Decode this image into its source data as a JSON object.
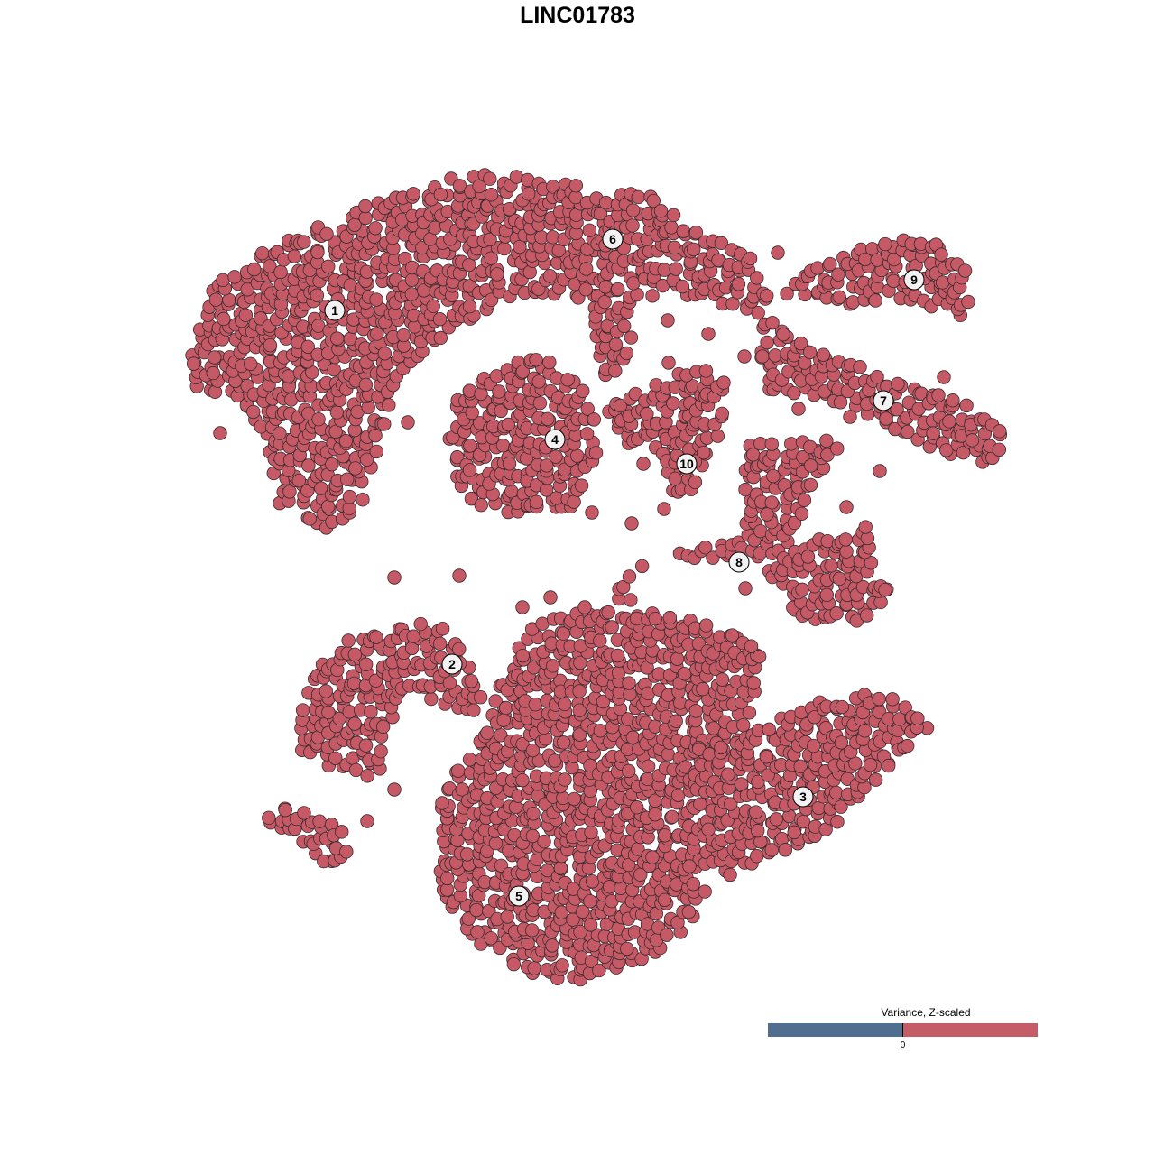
{
  "chart_data": {
    "type": "scatter",
    "title": "LINC01783",
    "xlabel": "",
    "ylabel": "",
    "grid": false,
    "axes_visible": false,
    "point_color": "#c55a66",
    "point_edge_color": "#3b2b2e",
    "clusters": [
      {
        "label": "1",
        "label_pos": [
          37.1,
          93.6
        ],
        "hull": [
          [
            21,
            88
          ],
          [
            23,
            96
          ],
          [
            30,
            101
          ],
          [
            40,
            105
          ],
          [
            52,
            109
          ],
          [
            56,
            109
          ],
          [
            56,
            95
          ],
          [
            48,
            90
          ],
          [
            44,
            86
          ],
          [
            42,
            78
          ],
          [
            40,
            72
          ],
          [
            36,
            69
          ],
          [
            31,
            72
          ],
          [
            29,
            80
          ],
          [
            25,
            84
          ],
          [
            21.5,
            85
          ]
        ]
      },
      {
        "label": "6",
        "label_pos": [
          67.9,
          101.5
        ],
        "hull": [
          [
            56,
            109
          ],
          [
            64,
            107.5
          ],
          [
            72,
            106.5
          ],
          [
            78,
            102
          ],
          [
            83,
            100
          ],
          [
            86,
            93
          ],
          [
            82,
            93
          ],
          [
            74,
            96
          ],
          [
            70,
            94
          ],
          [
            70,
            87
          ],
          [
            67,
            86
          ],
          [
            65,
            95
          ],
          [
            56,
            95
          ]
        ]
      },
      {
        "label": "9",
        "label_pos": [
          101.3,
          97
        ],
        "hull": [
          [
            87,
            95.5
          ],
          [
            91,
            99.5
          ],
          [
            96,
            100.5
          ],
          [
            100,
            102
          ],
          [
            104,
            101
          ],
          [
            107,
            98
          ],
          [
            107.5,
            93
          ],
          [
            105,
            93
          ],
          [
            102,
            94
          ],
          [
            99,
            95
          ],
          [
            94,
            94
          ],
          [
            88,
            95
          ]
        ]
      },
      {
        "label": "7",
        "label_pos": [
          97.9,
          83.6
        ],
        "hull": [
          [
            84,
            93
          ],
          [
            90,
            90.5
          ],
          [
            96,
            87
          ],
          [
            102,
            85
          ],
          [
            108,
            83
          ],
          [
            112,
            79
          ],
          [
            110,
            76.5
          ],
          [
            104,
            78
          ],
          [
            99,
            80
          ],
          [
            94,
            83
          ],
          [
            88,
            84
          ],
          [
            84,
            85
          ]
        ]
      },
      {
        "label": "4",
        "label_pos": [
          61.5,
          79.3
        ],
        "hull": [
          [
            50,
            83
          ],
          [
            54,
            87
          ],
          [
            60,
            88.5
          ],
          [
            65,
            85
          ],
          [
            66.5,
            79
          ],
          [
            64,
            72
          ],
          [
            58,
            70.5
          ],
          [
            52,
            72
          ],
          [
            49.5,
            78
          ]
        ]
      },
      {
        "label": "10",
        "label_pos": [
          76.1,
          76.6
        ],
        "hull": [
          [
            67,
            83
          ],
          [
            72,
            85.5
          ],
          [
            78,
            87.5
          ],
          [
            81,
            86
          ],
          [
            80,
            81
          ],
          [
            78,
            75
          ],
          [
            75,
            72
          ],
          [
            73,
            78
          ],
          [
            69,
            79
          ]
        ]
      },
      {
        "label": "8",
        "label_pos": [
          81.9,
          65.7
        ],
        "hull": [
          [
            82,
            79
          ],
          [
            92,
            79.5
          ],
          [
            94,
            78
          ],
          [
            90,
            74
          ],
          [
            88,
            68
          ],
          [
            97,
            70
          ],
          [
            97,
            65
          ],
          [
            99,
            62
          ],
          [
            96,
            59
          ],
          [
            89,
            59
          ],
          [
            86,
            63
          ],
          [
            84,
            66
          ],
          [
            78,
            66
          ],
          [
            72,
            66
          ],
          [
            70,
            64
          ],
          [
            70,
            59
          ],
          [
            68,
            62
          ],
          [
            69,
            65
          ],
          [
            76,
            67
          ],
          [
            82,
            68
          ],
          [
            83,
            72
          ],
          [
            82,
            76
          ]
        ]
      },
      {
        "label": "2",
        "label_pos": [
          50.1,
          54.4
        ],
        "hull": [
          [
            33,
            48
          ],
          [
            35,
            54
          ],
          [
            39,
            57.5
          ],
          [
            47,
            59
          ],
          [
            50,
            59
          ],
          [
            51,
            56
          ],
          [
            53,
            52
          ],
          [
            54,
            49
          ],
          [
            50,
            49
          ],
          [
            47,
            51
          ],
          [
            44,
            51
          ],
          [
            43,
            46
          ],
          [
            42,
            42
          ],
          [
            38,
            42
          ],
          [
            33,
            45
          ],
          [
            32.5,
            48
          ]
        ]
      },
      {
        "label": "",
        "label_pos": null,
        "hull": [
          [
            29,
            37
          ],
          [
            32,
            39
          ],
          [
            38,
            36
          ],
          [
            39,
            33
          ],
          [
            36,
            31
          ],
          [
            34,
            34.5
          ],
          [
            30,
            36.5
          ]
        ]
      },
      {
        "label": "5",
        "label_pos": [
          57.5,
          28.7
        ],
        "hull": [
          [
            55,
            52
          ],
          [
            58,
            58
          ],
          [
            62,
            60
          ],
          [
            70,
            61
          ],
          [
            78,
            59
          ],
          [
            85,
            56
          ],
          [
            84,
            50
          ],
          [
            82,
            45
          ],
          [
            79,
            43
          ],
          [
            77,
            40
          ],
          [
            78,
            33
          ],
          [
            79,
            30
          ],
          [
            76,
            25
          ],
          [
            72,
            21
          ],
          [
            64,
            19
          ],
          [
            58,
            20
          ],
          [
            52,
            24
          ],
          [
            49,
            29
          ],
          [
            48,
            35
          ],
          [
            49,
            40
          ],
          [
            52,
            45
          ],
          [
            54.5,
            48
          ]
        ]
      },
      {
        "label": "3",
        "label_pos": [
          89,
          39.7
        ],
        "hull": [
          [
            77,
            45
          ],
          [
            83,
            47
          ],
          [
            88,
            49
          ],
          [
            92,
            51
          ],
          [
            98,
            51
          ],
          [
            102,
            49
          ],
          [
            103,
            47
          ],
          [
            99,
            43
          ],
          [
            94,
            38
          ],
          [
            90,
            34
          ],
          [
            85,
            33
          ],
          [
            80,
            30
          ],
          [
            78,
            34
          ],
          [
            77,
            40
          ]
        ]
      }
    ],
    "stray_points": [
      [
        43.7,
        64
      ],
      [
        50.9,
        64.2
      ],
      [
        57.9,
        60.7
      ],
      [
        61,
        61.8
      ],
      [
        64.8,
        60.7
      ],
      [
        45.2,
        81.2
      ],
      [
        71.3,
        76.6
      ],
      [
        65.6,
        71.2
      ],
      [
        70,
        70
      ],
      [
        73.6,
        71.6
      ],
      [
        86.2,
        100
      ],
      [
        74,
        92.5
      ],
      [
        78.5,
        91
      ],
      [
        74.1,
        87.8
      ],
      [
        82.5,
        88.5
      ],
      [
        88.5,
        82.7
      ],
      [
        94.2,
        81.8
      ],
      [
        104.6,
        86.2
      ],
      [
        104,
        84.2
      ],
      [
        98.2,
        81.6
      ],
      [
        24.4,
        80
      ],
      [
        43.7,
        40.5
      ],
      [
        40.7,
        37
      ],
      [
        49,
        39
      ],
      [
        72.3,
        33
      ],
      [
        76.4,
        32
      ],
      [
        85,
        71
      ],
      [
        82.6,
        62.8
      ],
      [
        97.5,
        75.8
      ],
      [
        93.8,
        71.8
      ]
    ],
    "legend": {
      "title": "Variance, Z-scaled",
      "tick_label": "0",
      "low_color": "#506e8f",
      "high_color": "#c55d69",
      "position": "bottom-right"
    }
  }
}
